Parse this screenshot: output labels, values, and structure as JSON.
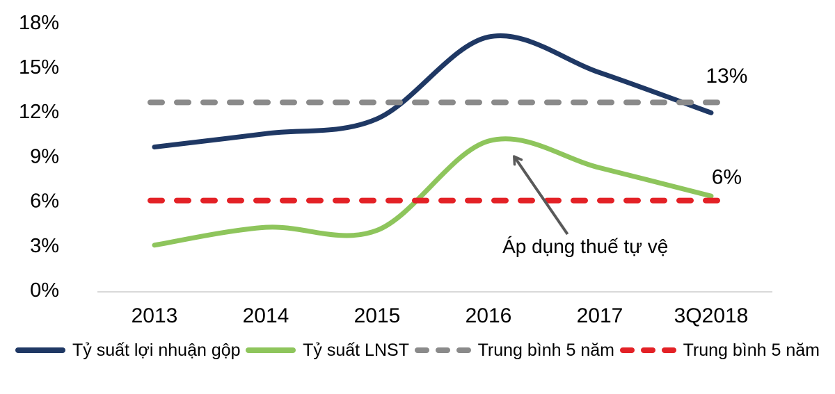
{
  "chart_data": {
    "type": "line",
    "categories": [
      "2013",
      "2014",
      "2015",
      "2016",
      "2017",
      "3Q2018"
    ],
    "series": [
      {
        "id": "gross-margin-line",
        "name": "Tỷ suất lợi nhuận gộp",
        "style": "solid",
        "color": "#1F3864",
        "values": [
          9.6,
          10.5,
          11.5,
          17.0,
          14.6,
          11.9
        ]
      },
      {
        "id": "net-margin-line",
        "name": "Tỷ suất LNST",
        "style": "solid",
        "color": "#8EC55C",
        "values": [
          3.0,
          4.2,
          4.0,
          10.0,
          8.2,
          6.3
        ]
      },
      {
        "id": "avg-gross-line",
        "name": "Trung bình 5 năm",
        "style": "dashed",
        "color": "#8A8A8A",
        "constant": 12.6
      },
      {
        "id": "avg-net-line",
        "name": "Trung bình 5 năm",
        "style": "dashed",
        "color": "#E32126",
        "constant": 6.0
      }
    ],
    "y_axis": {
      "min": 0,
      "max": 18,
      "step": 3,
      "tick_labels": [
        "0%",
        "3%",
        "6%",
        "9%",
        "12%",
        "15%",
        "18%"
      ],
      "grid": false
    },
    "end_labels": [
      {
        "id": "avg-gross-value-label",
        "text": "13%",
        "xi": 5.14,
        "v": 14.4
      },
      {
        "id": "avg-net-value-label",
        "text": "6%",
        "xi": 5.14,
        "v": 7.6
      }
    ],
    "annotation": {
      "text": "Áp dụng thuế tự vệ",
      "text_xi": 3.87,
      "text_v": 2.48,
      "arrow": {
        "from_xi": 3.71,
        "from_v": 3.74,
        "to_xi": 3.23,
        "to_v": 8.97
      },
      "color": "#595959"
    },
    "legend": [
      {
        "label": "Tỷ suất lợi nhuận gộp",
        "color": "#1F3864",
        "style": "solid"
      },
      {
        "label": "Tỷ suất LNST",
        "color": "#8EC55C",
        "style": "solid"
      },
      {
        "label": "Trung bình 5 năm",
        "color": "#8A8A8A",
        "style": "dashed"
      },
      {
        "label": "Trung bình 5 năm",
        "color": "#E32126",
        "style": "dashed"
      }
    ],
    "layout_hints": {
      "legend_position": "bottom",
      "axis_line_color": "#D9D9D9",
      "text_color": "#000000"
    }
  }
}
